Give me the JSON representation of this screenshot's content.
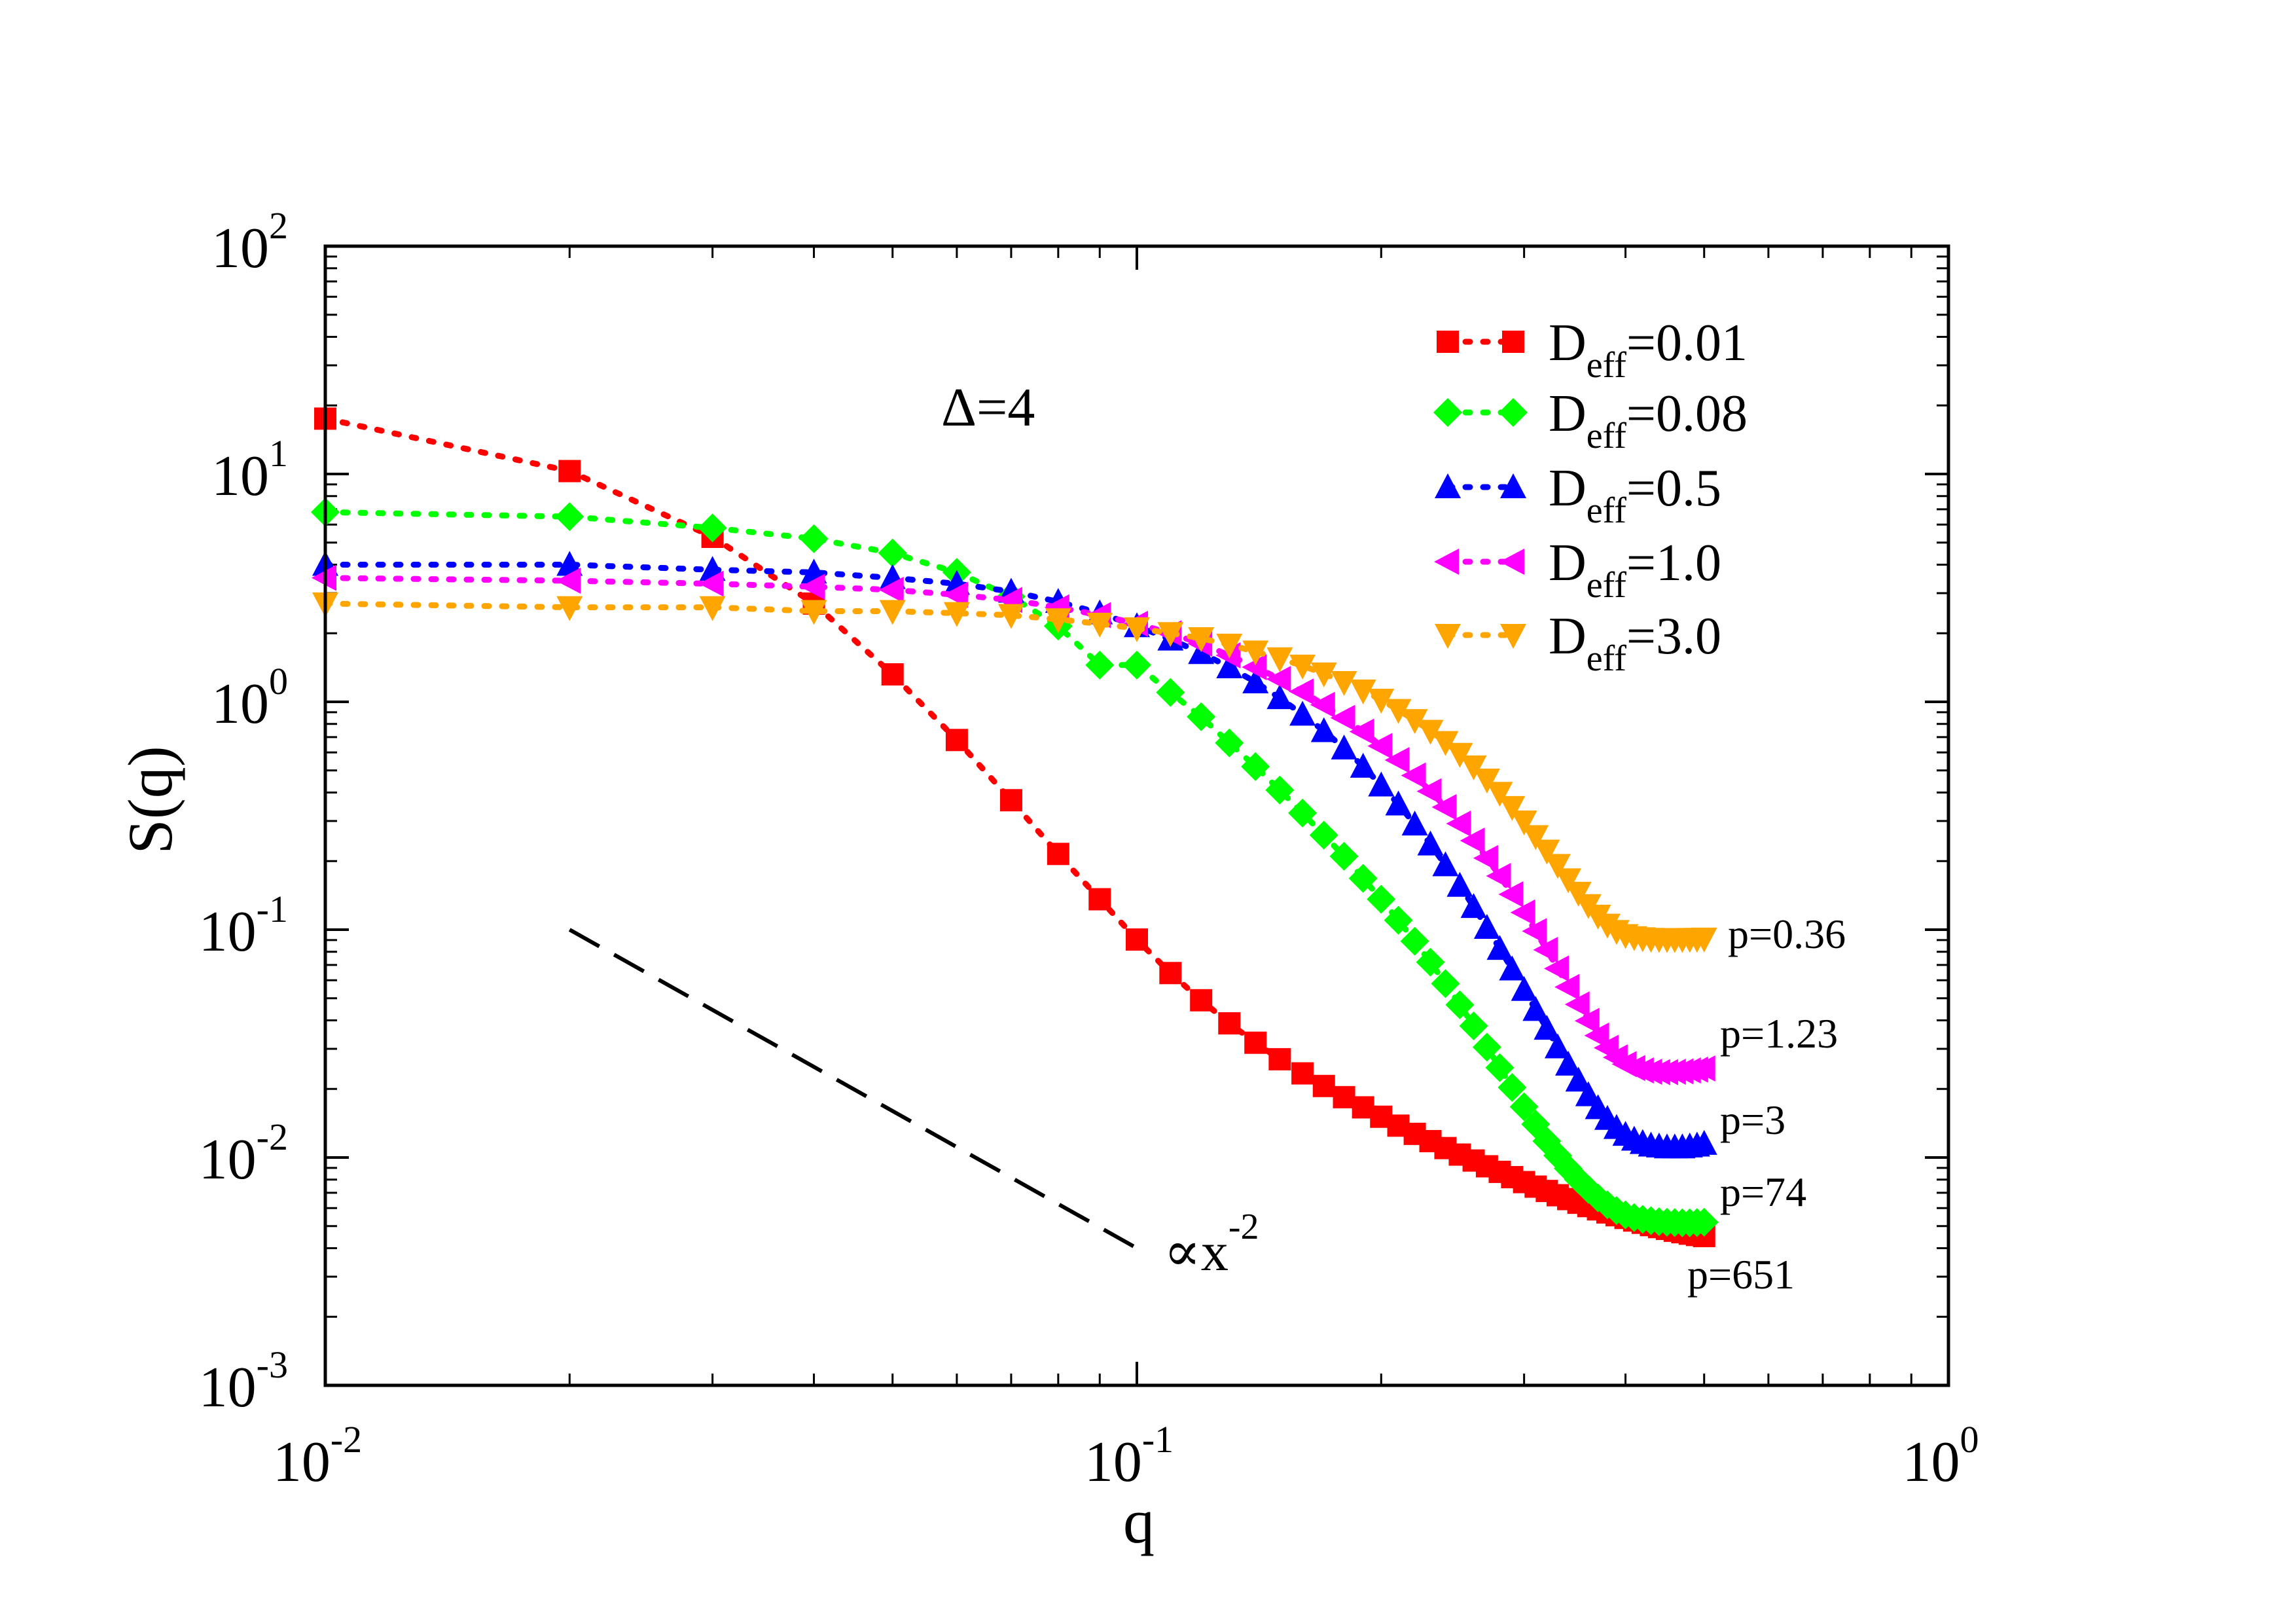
{
  "chart_data": {
    "type": "scatter",
    "xscale": "log",
    "yscale": "log",
    "xlim": [
      0.01,
      1
    ],
    "ylim": [
      0.001,
      100
    ],
    "xlabel": "q",
    "ylabel": "S(q)",
    "annotation": "Δ=4",
    "x_ticks": [
      {
        "base": "10",
        "exp": "-2"
      },
      {
        "base": "10",
        "exp": "-1"
      },
      {
        "base": "10",
        "exp": "0"
      }
    ],
    "y_ticks": [
      {
        "base": "10",
        "exp": "-3"
      },
      {
        "base": "10",
        "exp": "-2"
      },
      {
        "base": "10",
        "exp": "-1"
      },
      {
        "base": "10",
        "exp": "0"
      },
      {
        "base": "10",
        "exp": "1"
      },
      {
        "base": "10",
        "exp": "2"
      }
    ],
    "series": [
      {
        "name": "D_eff=0.01",
        "legend_main": "D",
        "legend_sub": "eff",
        "legend_value": "=0.01",
        "color": "#ff0000",
        "marker": "square",
        "p_label": "p=651",
        "x": [
          0.01,
          0.02,
          0.03,
          0.04,
          0.05,
          0.06,
          0.07,
          0.08,
          0.09,
          0.1,
          0.11,
          0.12,
          0.13,
          0.14,
          0.15,
          0.16,
          0.17,
          0.18,
          0.19,
          0.2,
          0.21,
          0.22,
          0.23,
          0.24,
          0.25,
          0.26,
          0.27,
          0.28,
          0.29,
          0.3,
          0.31,
          0.32,
          0.33,
          0.34,
          0.35,
          0.36,
          0.37,
          0.38,
          0.39,
          0.4,
          0.41,
          0.42,
          0.43,
          0.44,
          0.45,
          0.46,
          0.47,
          0.48,
          0.49,
          0.5
        ],
        "y": [
          17.5,
          10.3,
          5.3,
          2.7,
          1.32,
          0.68,
          0.37,
          0.215,
          0.136,
          0.0905,
          0.0645,
          0.049,
          0.0388,
          0.0319,
          0.027,
          0.0234,
          0.0206,
          0.0184,
          0.0166,
          0.0151,
          0.0138,
          0.0127,
          0.0118,
          0.011,
          0.0103,
          0.0097,
          0.00915,
          0.00865,
          0.0082,
          0.0078,
          0.00745,
          0.00713,
          0.00683,
          0.00657,
          0.00633,
          0.00612,
          0.00592,
          0.00574,
          0.00558,
          0.00543,
          0.00529,
          0.00517,
          0.00505,
          0.00495,
          0.00486,
          0.00477,
          0.0047,
          0.00463,
          0.00457,
          0.00452
        ]
      },
      {
        "name": "D_eff=0.08",
        "legend_main": "D",
        "legend_sub": "eff",
        "legend_value": "=0.08",
        "color": "#00ff00",
        "marker": "diamond",
        "p_label": "p=74",
        "x": [
          0.01,
          0.02,
          0.03,
          0.04,
          0.05,
          0.06,
          0.07,
          0.08,
          0.09,
          0.1,
          0.11,
          0.12,
          0.13,
          0.14,
          0.15,
          0.16,
          0.17,
          0.18,
          0.19,
          0.2,
          0.21,
          0.22,
          0.23,
          0.24,
          0.25,
          0.26,
          0.27,
          0.28,
          0.29,
          0.3,
          0.31,
          0.32,
          0.33,
          0.34,
          0.35,
          0.36,
          0.37,
          0.38,
          0.39,
          0.4,
          0.41,
          0.42,
          0.43,
          0.44,
          0.45,
          0.46,
          0.47,
          0.48,
          0.49,
          0.5
        ],
        "y": [
          6.8,
          6.5,
          5.8,
          5.2,
          4.5,
          3.7,
          2.9,
          2.15,
          1.45,
          1.45,
          1.1,
          0.86,
          0.66,
          0.52,
          0.41,
          0.325,
          0.26,
          0.21,
          0.168,
          0.136,
          0.11,
          0.089,
          0.072,
          0.058,
          0.0468,
          0.0378,
          0.0305,
          0.0248,
          0.0203,
          0.0167,
          0.014,
          0.0118,
          0.0102,
          0.00895,
          0.008,
          0.00725,
          0.00665,
          0.0062,
          0.00585,
          0.0056,
          0.00545,
          0.00535,
          0.00528,
          0.00523,
          0.0052,
          0.00518,
          0.00517,
          0.00517,
          0.00518,
          0.0052
        ]
      },
      {
        "name": "D_eff=0.5",
        "legend_main": "D",
        "legend_sub": "eff",
        "legend_value": "=0.5",
        "color": "#0000ff",
        "marker": "triangle-up",
        "p_label": "p=3",
        "x": [
          0.01,
          0.02,
          0.03,
          0.04,
          0.05,
          0.06,
          0.07,
          0.08,
          0.09,
          0.1,
          0.11,
          0.12,
          0.13,
          0.14,
          0.15,
          0.16,
          0.17,
          0.18,
          0.19,
          0.2,
          0.21,
          0.22,
          0.23,
          0.24,
          0.25,
          0.26,
          0.27,
          0.28,
          0.29,
          0.3,
          0.31,
          0.32,
          0.33,
          0.34,
          0.35,
          0.36,
          0.37,
          0.38,
          0.39,
          0.4,
          0.41,
          0.42,
          0.43,
          0.44,
          0.45,
          0.46,
          0.47,
          0.48,
          0.49,
          0.5
        ],
        "y": [
          4.0,
          4.0,
          3.8,
          3.7,
          3.5,
          3.3,
          3.05,
          2.75,
          2.45,
          2.15,
          1.88,
          1.64,
          1.42,
          1.22,
          1.04,
          0.88,
          0.745,
          0.625,
          0.52,
          0.43,
          0.355,
          0.29,
          0.237,
          0.192,
          0.156,
          0.126,
          0.102,
          0.0825,
          0.067,
          0.0545,
          0.0445,
          0.0368,
          0.0305,
          0.0256,
          0.0218,
          0.0188,
          0.0165,
          0.0148,
          0.0135,
          0.0126,
          0.012,
          0.0116,
          0.0113,
          0.0112,
          0.0111,
          0.0111,
          0.0111,
          0.0112,
          0.0113,
          0.0115
        ]
      },
      {
        "name": "D_eff=1.0",
        "legend_main": "D",
        "legend_sub": "eff",
        "legend_value": "=1.0",
        "color": "#ff00ff",
        "marker": "triangle-left",
        "p_label": "p=1.23",
        "x": [
          0.01,
          0.02,
          0.03,
          0.04,
          0.05,
          0.06,
          0.07,
          0.08,
          0.09,
          0.1,
          0.11,
          0.12,
          0.13,
          0.14,
          0.15,
          0.16,
          0.17,
          0.18,
          0.19,
          0.2,
          0.21,
          0.22,
          0.23,
          0.24,
          0.25,
          0.26,
          0.27,
          0.28,
          0.29,
          0.3,
          0.31,
          0.32,
          0.33,
          0.34,
          0.35,
          0.36,
          0.37,
          0.38,
          0.39,
          0.4,
          0.41,
          0.42,
          0.43,
          0.44,
          0.45,
          0.46,
          0.47,
          0.48,
          0.49,
          0.5
        ],
        "y": [
          3.5,
          3.4,
          3.3,
          3.2,
          3.1,
          2.95,
          2.8,
          2.6,
          2.4,
          2.2,
          2.0,
          1.8,
          1.6,
          1.42,
          1.26,
          1.11,
          0.97,
          0.85,
          0.74,
          0.64,
          0.555,
          0.475,
          0.405,
          0.345,
          0.292,
          0.246,
          0.206,
          0.172,
          0.143,
          0.119,
          0.0985,
          0.0815,
          0.0675,
          0.056,
          0.047,
          0.0398,
          0.0343,
          0.0303,
          0.0275,
          0.0257,
          0.0247,
          0.0241,
          0.0238,
          0.0237,
          0.0237,
          0.0238,
          0.0239,
          0.0241,
          0.0243,
          0.0246
        ]
      },
      {
        "name": "D_eff=3.0",
        "legend_main": "D",
        "legend_sub": "eff",
        "legend_value": "=3.0",
        "color": "#ffa500",
        "marker": "triangle-down",
        "p_label": "p=0.36",
        "x": [
          0.01,
          0.02,
          0.03,
          0.04,
          0.05,
          0.06,
          0.07,
          0.08,
          0.09,
          0.1,
          0.11,
          0.12,
          0.13,
          0.14,
          0.15,
          0.16,
          0.17,
          0.18,
          0.19,
          0.2,
          0.21,
          0.22,
          0.23,
          0.24,
          0.25,
          0.26,
          0.27,
          0.28,
          0.29,
          0.3,
          0.31,
          0.32,
          0.33,
          0.34,
          0.35,
          0.36,
          0.37,
          0.38,
          0.39,
          0.4,
          0.41,
          0.42,
          0.43,
          0.44,
          0.45,
          0.46,
          0.47,
          0.48,
          0.49,
          0.5
        ],
        "y": [
          2.7,
          2.6,
          2.6,
          2.5,
          2.5,
          2.45,
          2.4,
          2.3,
          2.2,
          2.1,
          2.0,
          1.9,
          1.78,
          1.66,
          1.55,
          1.44,
          1.33,
          1.22,
          1.12,
          1.02,
          0.92,
          0.83,
          0.745,
          0.665,
          0.59,
          0.52,
          0.455,
          0.398,
          0.345,
          0.298,
          0.257,
          0.222,
          0.192,
          0.166,
          0.145,
          0.128,
          0.115,
          0.105,
          0.0985,
          0.0945,
          0.0925,
          0.0915,
          0.091,
          0.0908,
          0.0907,
          0.0907,
          0.0908,
          0.0909,
          0.091,
          0.0912
        ]
      }
    ],
    "reference_line": {
      "label_prefix": "∝x",
      "label_exp": "-2",
      "x": [
        0.02,
        0.1
      ],
      "y": [
        0.1,
        0.004
      ]
    }
  }
}
